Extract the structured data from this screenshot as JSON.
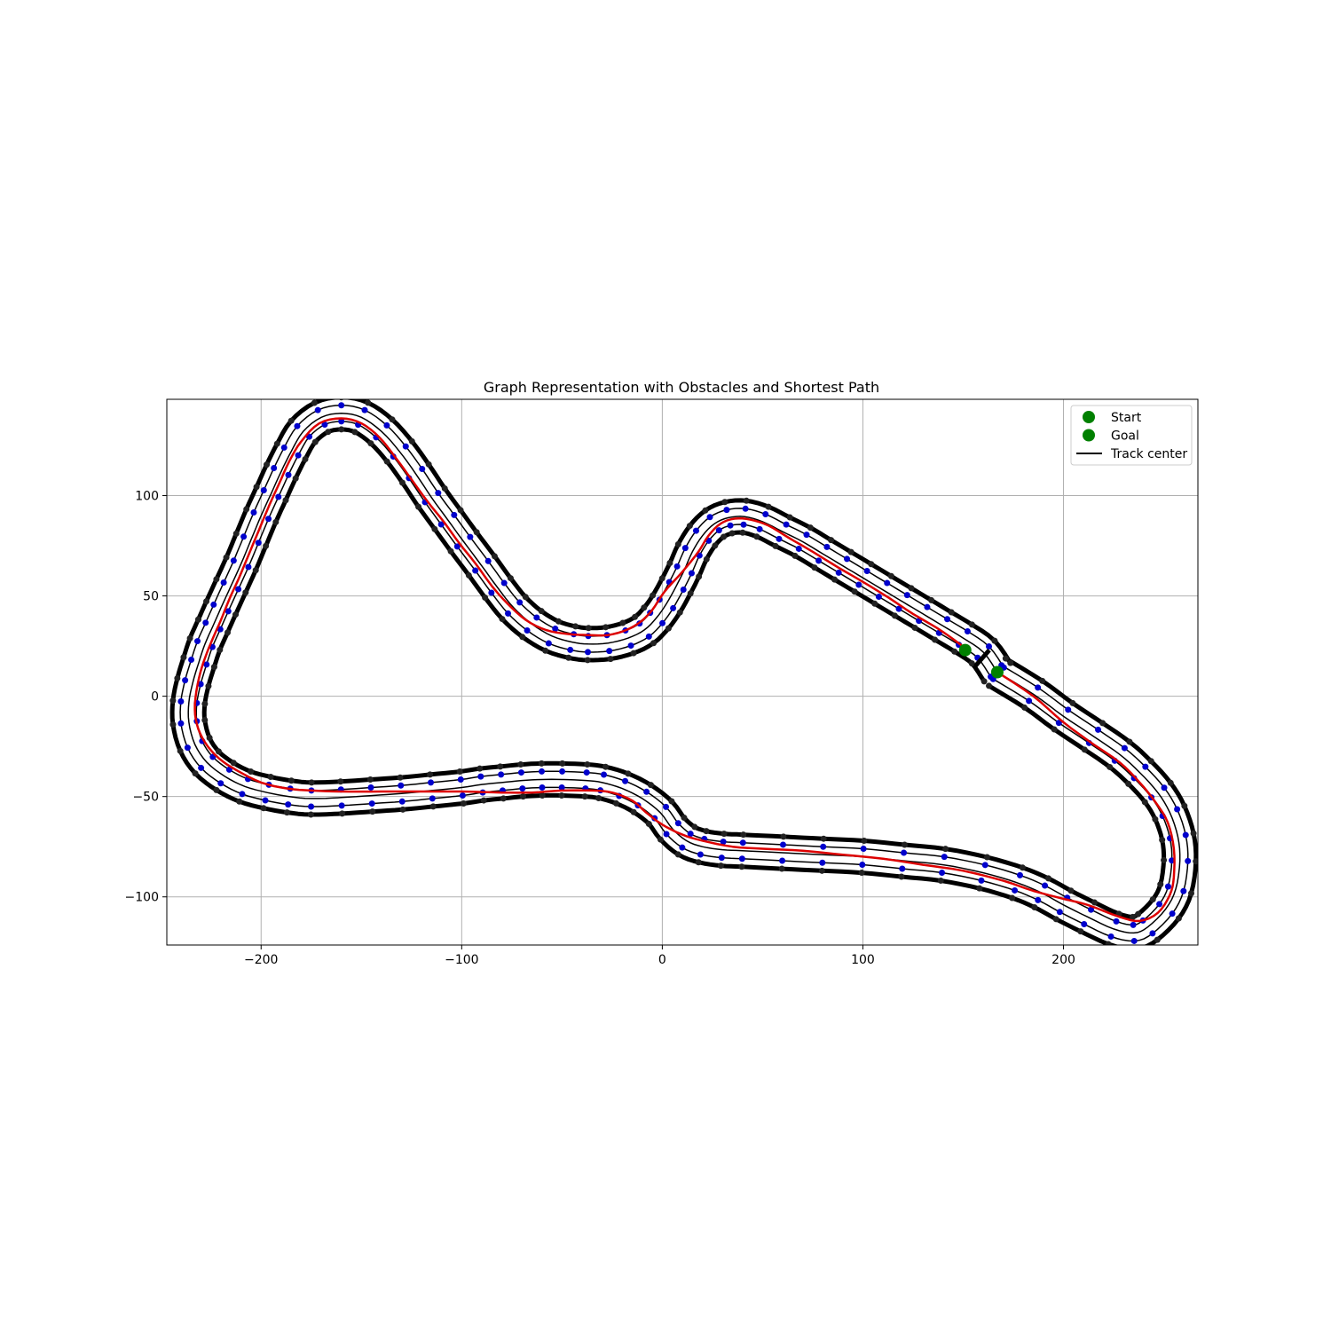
{
  "chart_data": {
    "type": "line",
    "title": "Graph Representation with Obstacles and Shortest Path",
    "xlabel": "",
    "ylabel": "",
    "xlim": [
      -247,
      267
    ],
    "ylim": [
      -124,
      148
    ],
    "xticks": [
      -200,
      -100,
      0,
      100,
      200
    ],
    "yticks": [
      -100,
      -50,
      0,
      50,
      100
    ],
    "xtick_labels": [
      "−200",
      "−100",
      "0",
      "100",
      "200"
    ],
    "ytick_labels": [
      "−100",
      "−50",
      "0",
      "50",
      "100"
    ],
    "grid": true,
    "legend_position": "top-right",
    "legend": [
      {
        "label": "Start",
        "marker": "circle",
        "color": "#008000"
      },
      {
        "label": "Goal",
        "marker": "circle",
        "color": "#008000"
      },
      {
        "label": "Track center",
        "marker": "line",
        "color": "#000000"
      }
    ],
    "colors": {
      "track_boundary": "#000000",
      "track_center": "#000000",
      "graph_nodes": "#0000cc",
      "shortest_path": "#dd0000",
      "start_goal": "#008000",
      "grid": "#b0b0b0"
    },
    "track_center": [
      [
        167,
        12
      ],
      [
        185,
        1
      ],
      [
        200,
        -10
      ],
      [
        215,
        -20
      ],
      [
        228,
        -29
      ],
      [
        238,
        -38
      ],
      [
        247,
        -48
      ],
      [
        253,
        -58
      ],
      [
        257,
        -70
      ],
      [
        258,
        -82
      ],
      [
        256,
        -96
      ],
      [
        251,
        -106
      ],
      [
        242,
        -115
      ],
      [
        235,
        -118
      ],
      [
        225,
        -116
      ],
      [
        212,
        -110
      ],
      [
        200,
        -104
      ],
      [
        189,
        -98
      ],
      [
        177,
        -93
      ],
      [
        160,
        -88
      ],
      [
        140,
        -84
      ],
      [
        120,
        -82
      ],
      [
        100,
        -80
      ],
      [
        80,
        -79
      ],
      [
        60,
        -78
      ],
      [
        40,
        -77
      ],
      [
        30,
        -76.5
      ],
      [
        20,
        -75
      ],
      [
        12,
        -72
      ],
      [
        5,
        -66
      ],
      [
        -1,
        -58
      ],
      [
        -10,
        -51
      ],
      [
        -20,
        -46
      ],
      [
        -30,
        -43
      ],
      [
        -38,
        -42
      ],
      [
        -50,
        -41.5
      ],
      [
        -60,
        -41.5
      ],
      [
        -70,
        -42
      ],
      [
        -80,
        -43
      ],
      [
        -90,
        -44
      ],
      [
        -100,
        -45.5
      ],
      [
        -115,
        -47
      ],
      [
        -130,
        -48.5
      ],
      [
        -145,
        -49.5
      ],
      [
        -160,
        -50.5
      ],
      [
        -175,
        -51
      ],
      [
        -186,
        -50
      ],
      [
        -197,
        -48
      ],
      [
        -208,
        -45
      ],
      [
        -218,
        -40
      ],
      [
        -227,
        -33
      ],
      [
        -233,
        -24
      ],
      [
        -236,
        -13
      ],
      [
        -236,
        -3
      ],
      [
        -234,
        7
      ],
      [
        -231,
        17
      ],
      [
        -228,
        26
      ],
      [
        -224,
        35
      ],
      [
        -220,
        44
      ],
      [
        -215,
        55
      ],
      [
        -210,
        66
      ],
      [
        -205,
        78
      ],
      [
        -200,
        90
      ],
      [
        -195,
        101
      ],
      [
        -190,
        112
      ],
      [
        -185,
        122
      ],
      [
        -179,
        132
      ],
      [
        -170,
        139
      ],
      [
        -160,
        141
      ],
      [
        -150,
        139
      ],
      [
        -140,
        132
      ],
      [
        -131,
        122
      ],
      [
        -123,
        111
      ],
      [
        -115,
        99
      ],
      [
        -107,
        88
      ],
      [
        -99,
        77
      ],
      [
        -90,
        65
      ],
      [
        -82,
        54
      ],
      [
        -74,
        44
      ],
      [
        -65,
        36
      ],
      [
        -55,
        30
      ],
      [
        -45,
        27
      ],
      [
        -37,
        26
      ],
      [
        -27,
        26.5
      ],
      [
        -17,
        29
      ],
      [
        -9,
        33
      ],
      [
        -3,
        39
      ],
      [
        2,
        46
      ],
      [
        7,
        55
      ],
      [
        11,
        63
      ],
      [
        15,
        72
      ],
      [
        20,
        80
      ],
      [
        26,
        86
      ],
      [
        33,
        89
      ],
      [
        41,
        89.5
      ],
      [
        50,
        87
      ],
      [
        60,
        82
      ],
      [
        70,
        77
      ],
      [
        80,
        71
      ],
      [
        90,
        65
      ],
      [
        100,
        59
      ],
      [
        110,
        53
      ],
      [
        120,
        47
      ],
      [
        130,
        41
      ],
      [
        140,
        35
      ],
      [
        150,
        29
      ],
      [
        160,
        22
      ],
      [
        167,
        12
      ]
    ],
    "track_width": 16,
    "graph_lanes": [
      -4,
      4
    ],
    "shortest_path": [
      [
        167,
        12
      ],
      [
        185,
        0
      ],
      [
        200,
        -13
      ],
      [
        215,
        -24
      ],
      [
        228,
        -33
      ],
      [
        238,
        -43
      ],
      [
        246,
        -53
      ],
      [
        252,
        -63
      ],
      [
        255,
        -76
      ],
      [
        255,
        -90
      ],
      [
        253,
        -99
      ],
      [
        247,
        -108
      ],
      [
        238,
        -112
      ],
      [
        228,
        -110
      ],
      [
        212,
        -104
      ],
      [
        200,
        -101
      ],
      [
        185,
        -97
      ],
      [
        170,
        -92
      ],
      [
        150,
        -87
      ],
      [
        130,
        -84
      ],
      [
        110,
        -81
      ],
      [
        90,
        -79
      ],
      [
        70,
        -77
      ],
      [
        50,
        -76
      ],
      [
        35,
        -75
      ],
      [
        20,
        -72
      ],
      [
        10,
        -69
      ],
      [
        0,
        -64
      ],
      [
        -8,
        -58
      ],
      [
        -15,
        -52
      ],
      [
        -25,
        -48
      ],
      [
        -35,
        -47
      ],
      [
        -50,
        -47
      ],
      [
        -65,
        -48
      ],
      [
        -80,
        -48
      ],
      [
        -100,
        -47.5
      ],
      [
        -120,
        -47.5
      ],
      [
        -140,
        -47.5
      ],
      [
        -160,
        -47.5
      ],
      [
        -175,
        -47
      ],
      [
        -187,
        -46
      ],
      [
        -200,
        -43
      ],
      [
        -212,
        -37
      ],
      [
        -221,
        -31
      ],
      [
        -228,
        -23
      ],
      [
        -232,
        -14
      ],
      [
        -233,
        -4
      ],
      [
        -231,
        9
      ],
      [
        -228,
        19
      ],
      [
        -224,
        29
      ],
      [
        -220,
        38
      ],
      [
        -216,
        48
      ],
      [
        -211,
        59
      ],
      [
        -206,
        71
      ],
      [
        -201,
        83
      ],
      [
        -196,
        95
      ],
      [
        -191,
        106
      ],
      [
        -186,
        117
      ],
      [
        -180,
        127
      ],
      [
        -171,
        136
      ],
      [
        -160,
        138.5
      ],
      [
        -150,
        136
      ],
      [
        -141,
        129
      ],
      [
        -133,
        119
      ],
      [
        -125,
        108
      ],
      [
        -117,
        97
      ],
      [
        -109,
        87
      ],
      [
        -101,
        76
      ],
      [
        -93,
        66
      ],
      [
        -85,
        55
      ],
      [
        -77,
        46
      ],
      [
        -68,
        38
      ],
      [
        -58,
        33
      ],
      [
        -47,
        31
      ],
      [
        -37,
        30.5
      ],
      [
        -27,
        30.5
      ],
      [
        -18,
        33
      ],
      [
        -11,
        37
      ],
      [
        -5,
        43
      ],
      [
        1,
        52
      ],
      [
        10,
        62
      ],
      [
        18,
        72
      ],
      [
        23,
        80
      ],
      [
        29,
        86
      ],
      [
        36,
        88.5
      ],
      [
        44,
        88
      ],
      [
        53,
        85
      ],
      [
        63,
        79
      ],
      [
        75,
        72
      ],
      [
        88,
        64
      ],
      [
        100,
        57
      ],
      [
        113,
        49
      ],
      [
        125,
        41
      ],
      [
        137,
        34
      ],
      [
        147,
        27
      ],
      [
        152,
        23
      ]
    ],
    "start": [
      151,
      23
    ],
    "goal": [
      167,
      12
    ],
    "obstacle_segment": [
      [
        156,
        15
      ],
      [
        163,
        23
      ]
    ]
  }
}
